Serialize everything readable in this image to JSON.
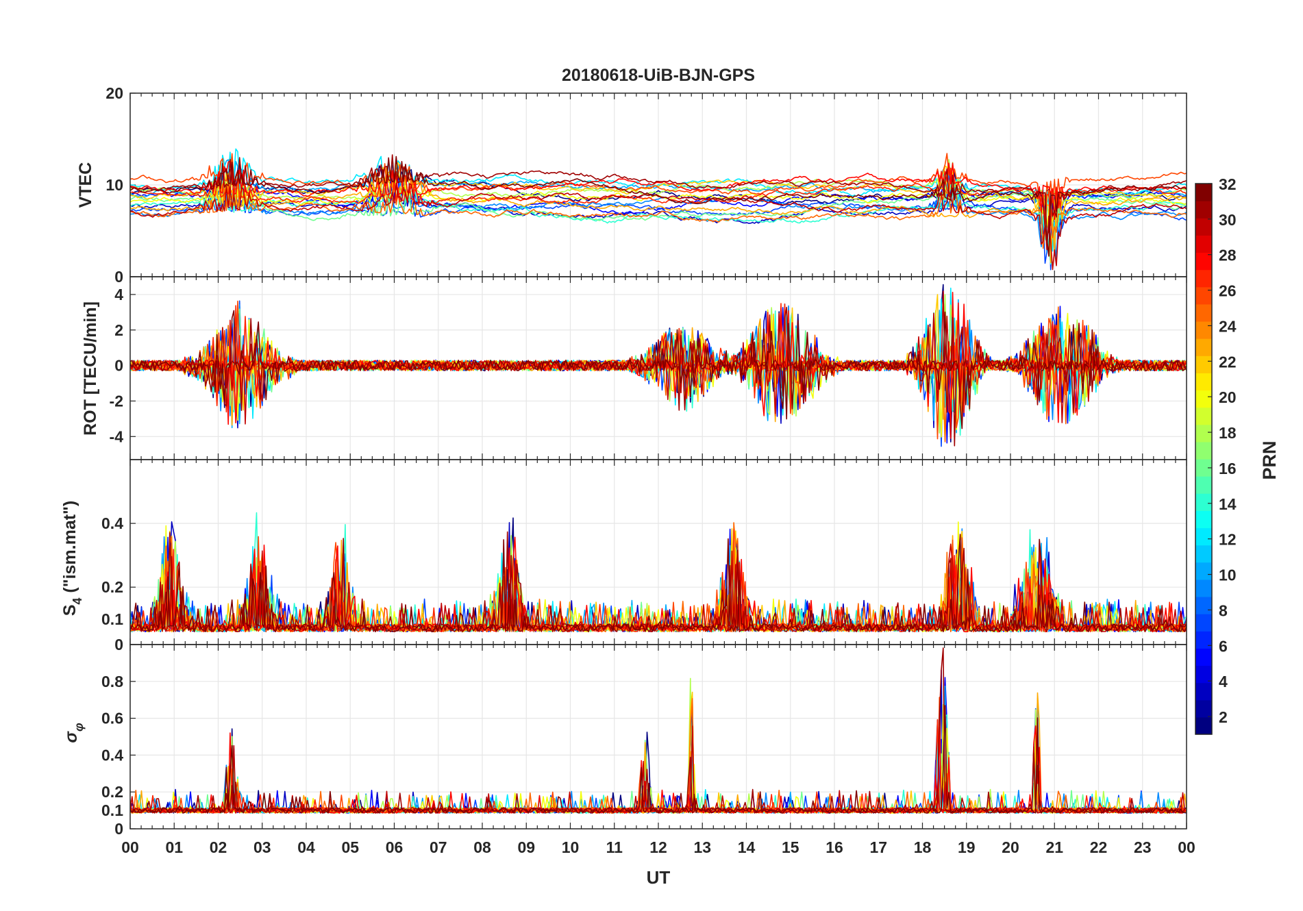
{
  "chart_data": {
    "type": "line",
    "title": "20180618-UiB-BJN-GPS",
    "xlabel": "UT",
    "x_ticks": [
      "00",
      "01",
      "02",
      "03",
      "04",
      "05",
      "06",
      "07",
      "08",
      "09",
      "10",
      "11",
      "12",
      "13",
      "14",
      "15",
      "16",
      "17",
      "18",
      "19",
      "20",
      "21",
      "22",
      "23",
      "00"
    ],
    "x_range_hours": [
      0,
      24
    ],
    "colorbar": {
      "label": "PRN",
      "range": [
        1,
        32
      ],
      "ticks": [
        "2",
        "4",
        "6",
        "8",
        "10",
        "12",
        "14",
        "16",
        "18",
        "20",
        "22",
        "24",
        "26",
        "28",
        "30",
        "32"
      ],
      "colormap": "jet"
    },
    "panels": [
      {
        "id": "vtec",
        "ylabel": "VTEC",
        "ylim": [
          0,
          20
        ],
        "y_ticks": [
          0,
          10,
          20
        ],
        "y_tick_labels": [
          "0",
          "10",
          "20"
        ],
        "baseline": 8.5,
        "spread": 1.6,
        "events": [
          {
            "t": 2.3,
            "amp": 3.5,
            "width": 0.5
          },
          {
            "t": 6.0,
            "amp": 3.0,
            "width": 0.6
          },
          {
            "t": 18.6,
            "amp": 3.0,
            "width": 0.3
          },
          {
            "t": 20.9,
            "amp": -7.0,
            "width": 0.25
          }
        ]
      },
      {
        "id": "rot",
        "ylabel": "ROT [TECU/min]",
        "ylim": [
          -5.3,
          5.0
        ],
        "y_ticks": [
          -4,
          -2,
          0,
          2,
          4
        ],
        "y_tick_labels": [
          "-4",
          "-2",
          "0",
          "2",
          "4"
        ],
        "baseline": 0,
        "spread": 0.2,
        "events": [
          {
            "t": 2.5,
            "amp": 3.4,
            "width": 0.8
          },
          {
            "t": 12.6,
            "amp": 2.5,
            "width": 0.8
          },
          {
            "t": 14.8,
            "amp": 3.6,
            "width": 0.8
          },
          {
            "t": 18.6,
            "amp": 5.0,
            "width": 0.6
          },
          {
            "t": 21.2,
            "amp": 3.5,
            "width": 0.8
          }
        ]
      },
      {
        "id": "s4",
        "ylabel": "S4 (\"ism.mat\")",
        "ylabel_main": "S",
        "ylabel_sub": "4",
        "ylabel_rest": " (\"ism.mat\")",
        "ylim": [
          0.02,
          0.6
        ],
        "y_ticks": [
          0.02,
          0.1,
          0.2,
          0.4
        ],
        "y_tick_labels": [
          "0",
          "0.1",
          "0.2",
          "0.4"
        ],
        "baseline": 0.06,
        "spread": 0.02,
        "events": [
          {
            "t": 0.9,
            "amp": 0.35,
            "width": 0.3
          },
          {
            "t": 2.9,
            "amp": 0.3,
            "width": 0.3
          },
          {
            "t": 4.8,
            "amp": 0.28,
            "width": 0.3
          },
          {
            "t": 8.6,
            "amp": 0.33,
            "width": 0.3
          },
          {
            "t": 13.7,
            "amp": 0.33,
            "width": 0.3
          },
          {
            "t": 18.8,
            "amp": 0.35,
            "width": 0.3
          },
          {
            "t": 20.6,
            "amp": 0.3,
            "width": 0.4
          }
        ]
      },
      {
        "id": "sigphi",
        "ylabel": "σφ",
        "ylabel_main": "σ",
        "ylabel_sub": "φ",
        "ylim": [
          0,
          1.0
        ],
        "y_ticks": [
          0,
          0.1,
          0.2,
          0.4,
          0.6,
          0.8
        ],
        "y_tick_labels": [
          "0",
          "0.1",
          "0.2",
          "0.4",
          "0.6",
          "0.8"
        ],
        "baseline": 0.1,
        "spread": 0.015,
        "events": [
          {
            "t": 2.3,
            "amp": 0.45,
            "width": 0.15
          },
          {
            "t": 11.7,
            "amp": 0.5,
            "width": 0.12
          },
          {
            "t": 12.75,
            "amp": 0.9,
            "width": 0.06
          },
          {
            "t": 18.45,
            "amp": 0.9,
            "width": 0.15
          },
          {
            "t": 20.6,
            "amp": 0.8,
            "width": 0.08
          }
        ]
      }
    ],
    "series_prn": [
      1,
      3,
      5,
      7,
      9,
      10,
      12,
      14,
      16,
      18,
      20,
      22,
      23,
      25,
      26,
      27,
      28,
      30,
      31,
      32
    ]
  },
  "colors": {
    "axis": "#262626",
    "grid": "#e6e6e6",
    "background": "#ffffff"
  }
}
